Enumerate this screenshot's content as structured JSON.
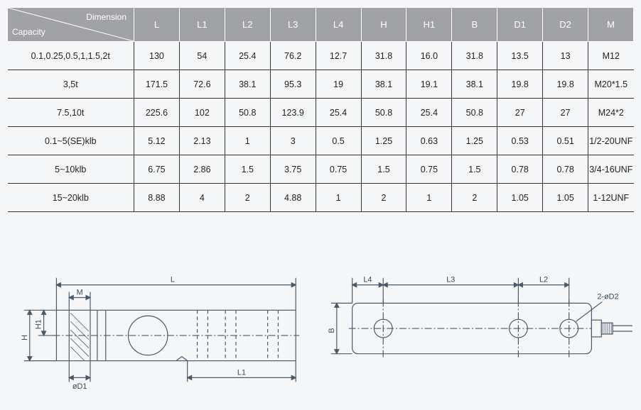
{
  "table": {
    "header": {
      "diag_top": "Dimension",
      "diag_bottom": "Capacity",
      "cols": [
        "L",
        "L1",
        "L2",
        "L3",
        "L4",
        "H",
        "H1",
        "B",
        "D1",
        "D2",
        "M"
      ]
    },
    "rows": [
      {
        "cap": "0.1,0.25,0.5,1,1.5,2t",
        "vals": [
          "130",
          "54",
          "25.4",
          "76.2",
          "12.7",
          "31.8",
          "16.0",
          "31.8",
          "13.5",
          "13",
          "M12"
        ]
      },
      {
        "cap": "3,5t",
        "vals": [
          "171.5",
          "72.6",
          "38.1",
          "95.3",
          "19",
          "38.1",
          "19.1",
          "38.1",
          "19.8",
          "19.8",
          "M20*1.5"
        ]
      },
      {
        "cap": "7.5,10t",
        "vals": [
          "225.6",
          "102",
          "50.8",
          "123.9",
          "25.4",
          "50.8",
          "25.4",
          "50.8",
          "27",
          "27",
          "M24*2"
        ]
      },
      {
        "cap": "0.1~5(SE)klb",
        "vals": [
          "5.12",
          "2.13",
          "1",
          "3",
          "0.5",
          "1.25",
          "0.63",
          "1.25",
          "0.53",
          "0.51",
          "1/2-20UNF"
        ]
      },
      {
        "cap": "5~10klb",
        "vals": [
          "6.75",
          "2.86",
          "1.5",
          "3.75",
          "0.75",
          "1.5",
          "0.75",
          "1.5",
          "0.78",
          "0.78",
          "3/4-16UNF"
        ]
      },
      {
        "cap": "15~20klb",
        "vals": [
          "8.88",
          "4",
          "2",
          "4.88",
          "1",
          "2",
          "1",
          "2",
          "1.05",
          "1.05",
          "1-12UNF"
        ]
      }
    ]
  },
  "drawing": {
    "labels": {
      "L": "L",
      "L1": "L1",
      "L2": "L2",
      "L3": "L3",
      "L4": "L4",
      "H": "H",
      "H1": "H1",
      "B": "B",
      "D1": "øD1",
      "D2": "2-øD2",
      "M": "M"
    },
    "colors": {
      "stroke": "#4b5a6a",
      "fill": "#f5f6f7",
      "text": "#3a4a5a"
    }
  }
}
